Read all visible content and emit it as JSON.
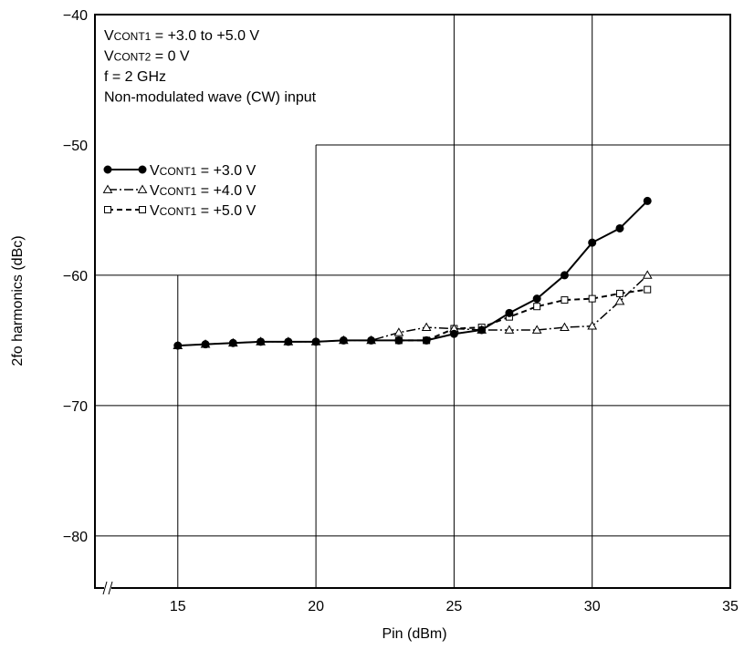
{
  "chart_data": {
    "type": "line",
    "xlabel": "Pin (dBm)",
    "ylabel": "2fo harmonics (dBc)",
    "xlim": [
      12,
      35
    ],
    "ylim": [
      -84,
      -40
    ],
    "x_ticks": [
      15,
      20,
      25,
      30,
      35
    ],
    "x_tick_labels": [
      "15",
      "20",
      "25",
      "30",
      "35"
    ],
    "y_ticks": [
      -40,
      -50,
      -60,
      -70,
      -80
    ],
    "y_tick_labels": [
      "−40",
      "−50",
      "−60",
      "−70",
      "−80"
    ],
    "x_axis_break": true,
    "grid": true,
    "legend_position": "upper-left",
    "conditions": [
      {
        "prefix": "V",
        "sub": "CONT1",
        "suffix": " = +3.0 to +5.0 V"
      },
      {
        "prefix": "V",
        "sub": "CONT2",
        "suffix": " = 0 V"
      },
      {
        "prefix": "f = 2 GHz",
        "sub": "",
        "suffix": ""
      },
      {
        "prefix": "Non-modulated wave (CW) input",
        "sub": "",
        "suffix": ""
      }
    ],
    "series": [
      {
        "name": "VCONT1 = +3.0 V",
        "legend": {
          "prefix": "V",
          "sub": "CONT1",
          "suffix": " = +3.0 V"
        },
        "marker": "filled-circle",
        "line": "solid",
        "x": [
          15,
          16,
          17,
          18,
          19,
          20,
          21,
          22,
          23,
          24,
          25,
          26,
          27,
          28,
          29,
          30,
          31,
          32
        ],
        "y": [
          -65.4,
          -65.3,
          -65.2,
          -65.1,
          -65.1,
          -65.1,
          -65.0,
          -65.0,
          -65.0,
          -65.0,
          -64.5,
          -64.2,
          -62.9,
          -61.8,
          -60.0,
          -57.5,
          -56.4,
          -54.3
        ]
      },
      {
        "name": "VCONT1 = +4.0 V",
        "legend": {
          "prefix": "V",
          "sub": "CONT1",
          "suffix": " = +4.0 V"
        },
        "marker": "open-triangle",
        "line": "dash-dot",
        "x": [
          15,
          16,
          17,
          18,
          19,
          20,
          21,
          22,
          23,
          24,
          25,
          26,
          27,
          28,
          29,
          30,
          31,
          32
        ],
        "y": [
          -65.4,
          -65.3,
          -65.2,
          -65.1,
          -65.1,
          -65.1,
          -65.0,
          -65.0,
          -64.4,
          -64.0,
          -64.1,
          -64.2,
          -64.2,
          -64.2,
          -64.0,
          -63.9,
          -62.0,
          -60.0
        ]
      },
      {
        "name": "VCONT1 = +5.0 V",
        "legend": {
          "prefix": "V",
          "sub": "CONT1",
          "suffix": " = +5.0 V"
        },
        "marker": "open-square",
        "line": "dashed",
        "x": [
          23,
          24,
          25,
          26,
          27,
          28,
          29,
          30,
          31,
          32
        ],
        "y": [
          -65.0,
          -65.0,
          -64.1,
          -64.0,
          -63.2,
          -62.4,
          -61.9,
          -61.8,
          -61.4,
          -61.1
        ]
      }
    ]
  }
}
